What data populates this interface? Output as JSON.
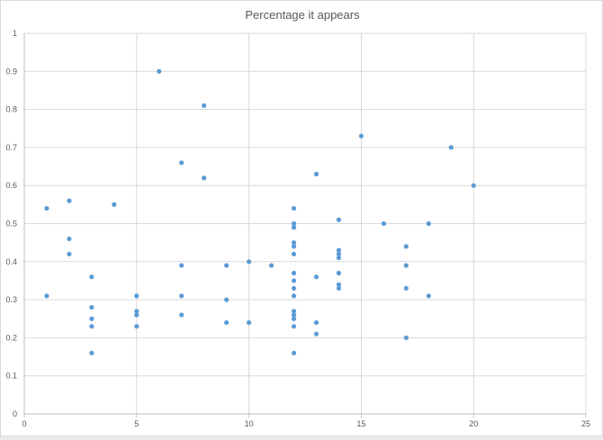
{
  "chart_data": {
    "type": "scatter",
    "title": "Percentage it appears",
    "xlabel": "",
    "ylabel": "",
    "xlim": [
      0,
      25
    ],
    "ylim": [
      0,
      1
    ],
    "x_ticks": [
      "0",
      "5",
      "10",
      "15",
      "20",
      "25"
    ],
    "y_ticks": [
      "0",
      "0.1",
      "0.2",
      "0.3",
      "0.4",
      "0.5",
      "0.6",
      "0.7",
      "0.8",
      "0.9",
      "1"
    ],
    "grid": true,
    "legend": "none",
    "marker_color": "#5b9bd5",
    "points": [
      [
        1,
        0.54
      ],
      [
        1,
        0.31
      ],
      [
        2,
        0.56
      ],
      [
        2,
        0.46
      ],
      [
        2,
        0.42
      ],
      [
        3,
        0.36
      ],
      [
        3,
        0.28
      ],
      [
        3,
        0.25
      ],
      [
        3,
        0.23
      ],
      [
        3,
        0.16
      ],
      [
        4,
        0.55
      ],
      [
        5,
        0.31
      ],
      [
        5,
        0.27
      ],
      [
        5,
        0.26
      ],
      [
        5,
        0.23
      ],
      [
        6,
        0.9
      ],
      [
        7,
        0.66
      ],
      [
        7,
        0.39
      ],
      [
        7,
        0.31
      ],
      [
        7,
        0.26
      ],
      [
        8,
        0.81
      ],
      [
        8,
        0.62
      ],
      [
        9,
        0.39
      ],
      [
        9,
        0.3
      ],
      [
        9,
        0.24
      ],
      [
        10,
        0.4
      ],
      [
        10,
        0.24
      ],
      [
        11,
        0.39
      ],
      [
        12,
        0.54
      ],
      [
        12,
        0.5
      ],
      [
        12,
        0.49
      ],
      [
        12,
        0.45
      ],
      [
        12,
        0.44
      ],
      [
        12,
        0.42
      ],
      [
        12,
        0.37
      ],
      [
        12,
        0.35
      ],
      [
        12,
        0.33
      ],
      [
        12,
        0.31
      ],
      [
        12,
        0.27
      ],
      [
        12,
        0.26
      ],
      [
        12,
        0.25
      ],
      [
        12,
        0.23
      ],
      [
        12,
        0.16
      ],
      [
        13,
        0.63
      ],
      [
        13,
        0.36
      ],
      [
        13,
        0.24
      ],
      [
        13,
        0.21
      ],
      [
        14,
        0.51
      ],
      [
        14,
        0.43
      ],
      [
        14,
        0.42
      ],
      [
        14,
        0.41
      ],
      [
        14,
        0.37
      ],
      [
        14,
        0.34
      ],
      [
        14,
        0.33
      ],
      [
        15,
        0.73
      ],
      [
        16,
        0.5
      ],
      [
        17,
        0.44
      ],
      [
        17,
        0.39
      ],
      [
        17,
        0.33
      ],
      [
        17,
        0.2
      ],
      [
        18,
        0.5
      ],
      [
        18,
        0.31
      ],
      [
        19,
        0.7
      ],
      [
        20,
        0.6
      ]
    ]
  }
}
